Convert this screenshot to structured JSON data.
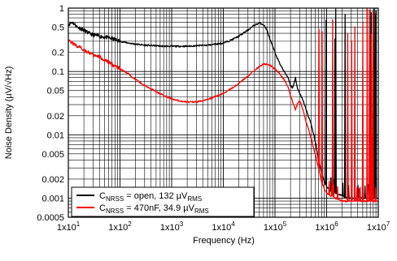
{
  "chart_data": {
    "type": "line",
    "title": "",
    "xlabel": "Frequency (Hz)",
    "ylabel": "Noise Density (µV/√Hz)",
    "x_scale": "log",
    "y_scale": "log",
    "xlim": [
      10,
      10000000
    ],
    "ylim": [
      0.0005,
      1
    ],
    "grid": true,
    "legend_position": "bottom-left",
    "x_ticks": [
      {
        "value": 10,
        "base": "1x10",
        "exp": "1"
      },
      {
        "value": 100,
        "base": "1x10",
        "exp": "2"
      },
      {
        "value": 1000,
        "base": "1x10",
        "exp": "3"
      },
      {
        "value": 10000,
        "base": "1x10",
        "exp": "4"
      },
      {
        "value": 100000,
        "base": "1x10",
        "exp": "5"
      },
      {
        "value": 1000000,
        "base": "1x10",
        "exp": "6"
      },
      {
        "value": 10000000,
        "base": "1x10",
        "exp": "7"
      }
    ],
    "y_ticks": [
      {
        "value": 1,
        "label": "1"
      },
      {
        "value": 0.5,
        "label": "0.5"
      },
      {
        "value": 0.2,
        "label": "0.2"
      },
      {
        "value": 0.1,
        "label": "0.1"
      },
      {
        "value": 0.05,
        "label": "0.05"
      },
      {
        "value": 0.02,
        "label": "0.02"
      },
      {
        "value": 0.01,
        "label": "0.01"
      },
      {
        "value": 0.005,
        "label": "0.005"
      },
      {
        "value": 0.002,
        "label": "0.002"
      },
      {
        "value": 0.001,
        "label": "0.001"
      },
      {
        "value": 0.0005,
        "label": "0.0005"
      }
    ],
    "series": [
      {
        "color": "#000000",
        "legend": {
          "prefix": "C",
          "sub": "NRSS",
          "mid": " = open, 132 µV",
          "sub2": "RMS"
        },
        "x": [
          10,
          12,
          15,
          20,
          25,
          30,
          40,
          50,
          70,
          100,
          150,
          200,
          300,
          500,
          700,
          1000,
          1500,
          2000,
          3000,
          5000,
          7000,
          10000,
          15000,
          20000,
          30000,
          40000,
          50000,
          60000,
          70000,
          80000,
          100000,
          120000,
          150000,
          180000,
          200000,
          220000,
          250000,
          270000,
          300000,
          350000,
          400000,
          500000,
          600000,
          700000,
          800000,
          900000,
          1000000,
          1200000,
          1500000,
          2000000,
          2500000,
          3000000,
          4000000,
          5000000,
          6000000,
          7000000,
          8000000,
          10000000
        ],
        "y": [
          0.55,
          0.6,
          0.5,
          0.45,
          0.4,
          0.38,
          0.36,
          0.35,
          0.33,
          0.3,
          0.28,
          0.27,
          0.26,
          0.255,
          0.25,
          0.25,
          0.25,
          0.25,
          0.255,
          0.26,
          0.27,
          0.28,
          0.32,
          0.36,
          0.45,
          0.54,
          0.58,
          0.55,
          0.45,
          0.32,
          0.2,
          0.14,
          0.1,
          0.08,
          0.06,
          0.055,
          0.08,
          0.055,
          0.045,
          0.035,
          0.025,
          0.015,
          0.008,
          0.004,
          0.0025,
          0.0018,
          0.0015,
          0.0013,
          0.0012,
          0.0011,
          0.001,
          0.001,
          0.001,
          0.001,
          0.001,
          0.001,
          0.001,
          0.001
        ]
      },
      {
        "color": "#ff0000",
        "legend": {
          "prefix": "C",
          "sub": "NRSS",
          "mid": " = 470nF, 34.9 µV",
          "sub2": "RMS"
        },
        "x": [
          10,
          12,
          15,
          20,
          25,
          30,
          40,
          50,
          70,
          100,
          150,
          200,
          300,
          500,
          700,
          1000,
          1500,
          2000,
          3000,
          5000,
          7000,
          10000,
          15000,
          20000,
          30000,
          40000,
          50000,
          60000,
          70000,
          80000,
          100000,
          120000,
          150000,
          180000,
          200000,
          220000,
          250000,
          270000,
          300000,
          350000,
          400000,
          500000,
          600000,
          700000,
          800000,
          900000,
          1000000,
          1200000,
          1500000,
          2000000,
          2500000,
          3000000,
          4000000,
          5000000,
          6000000,
          7000000,
          8000000,
          10000000
        ],
        "y": [
          0.32,
          0.28,
          0.25,
          0.22,
          0.2,
          0.18,
          0.17,
          0.15,
          0.13,
          0.11,
          0.09,
          0.075,
          0.06,
          0.048,
          0.042,
          0.037,
          0.034,
          0.033,
          0.033,
          0.036,
          0.04,
          0.045,
          0.055,
          0.065,
          0.085,
          0.105,
          0.12,
          0.13,
          0.13,
          0.125,
          0.11,
          0.095,
          0.075,
          0.055,
          0.042,
          0.033,
          0.025,
          0.03,
          0.035,
          0.025,
          0.016,
          0.009,
          0.005,
          0.003,
          0.0018,
          0.0014,
          0.0012,
          0.0011,
          0.001,
          0.0009,
          0.0009,
          0.0009,
          0.0009,
          0.0009,
          0.0009,
          0.0009,
          0.0009,
          0.0009
        ]
      }
    ],
    "spike_region": {
      "x_start": 700000,
      "x_end": 10000000
    }
  }
}
